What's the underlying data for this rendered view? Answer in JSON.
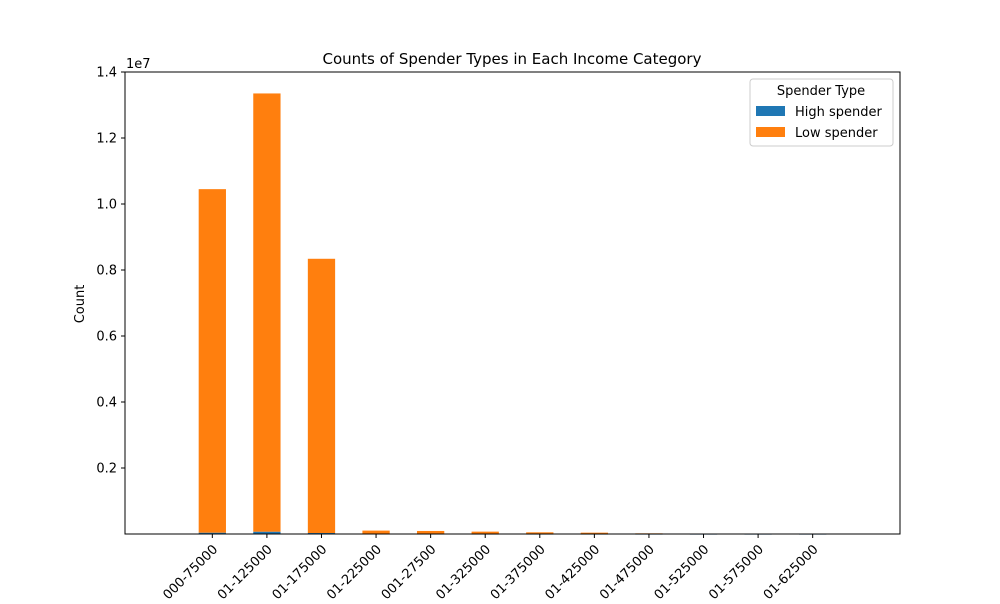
{
  "chart_data": {
    "type": "bar",
    "stacked": true,
    "title": "Counts of Spender Types in Each Income Category",
    "xlabel": "",
    "ylabel": "Count",
    "y_offset_label": "1e7",
    "ylim": [
      0,
      14000000
    ],
    "y_ticks": [
      2000000,
      4000000,
      6000000,
      8000000,
      10000000,
      12000000,
      14000000
    ],
    "y_tick_labels": [
      "0.2",
      "0.4",
      "0.6",
      "0.8",
      "1.0",
      "1.2",
      "1.4"
    ],
    "grid": false,
    "legend": {
      "title": "Spender Type",
      "placement": "top-right"
    },
    "categories": [
      "000-75000",
      "01-125000",
      "01-175000",
      "01-225000",
      "001-27500",
      "01-325000",
      "01-375000",
      "01-425000",
      "01-475000",
      "01-525000",
      "01-575000",
      "01-625000"
    ],
    "series": [
      {
        "name": "High spender",
        "color": "#1f77b4",
        "values": [
          40000,
          70000,
          30000,
          3000,
          2000,
          1500,
          1000,
          800,
          300,
          200,
          150,
          100
        ]
      },
      {
        "name": "Low spender",
        "color": "#ff7f0e",
        "values": [
          10410000,
          13280000,
          8310000,
          100000,
          90000,
          70000,
          50000,
          40000,
          20000,
          12000,
          9000,
          6000
        ]
      }
    ]
  }
}
